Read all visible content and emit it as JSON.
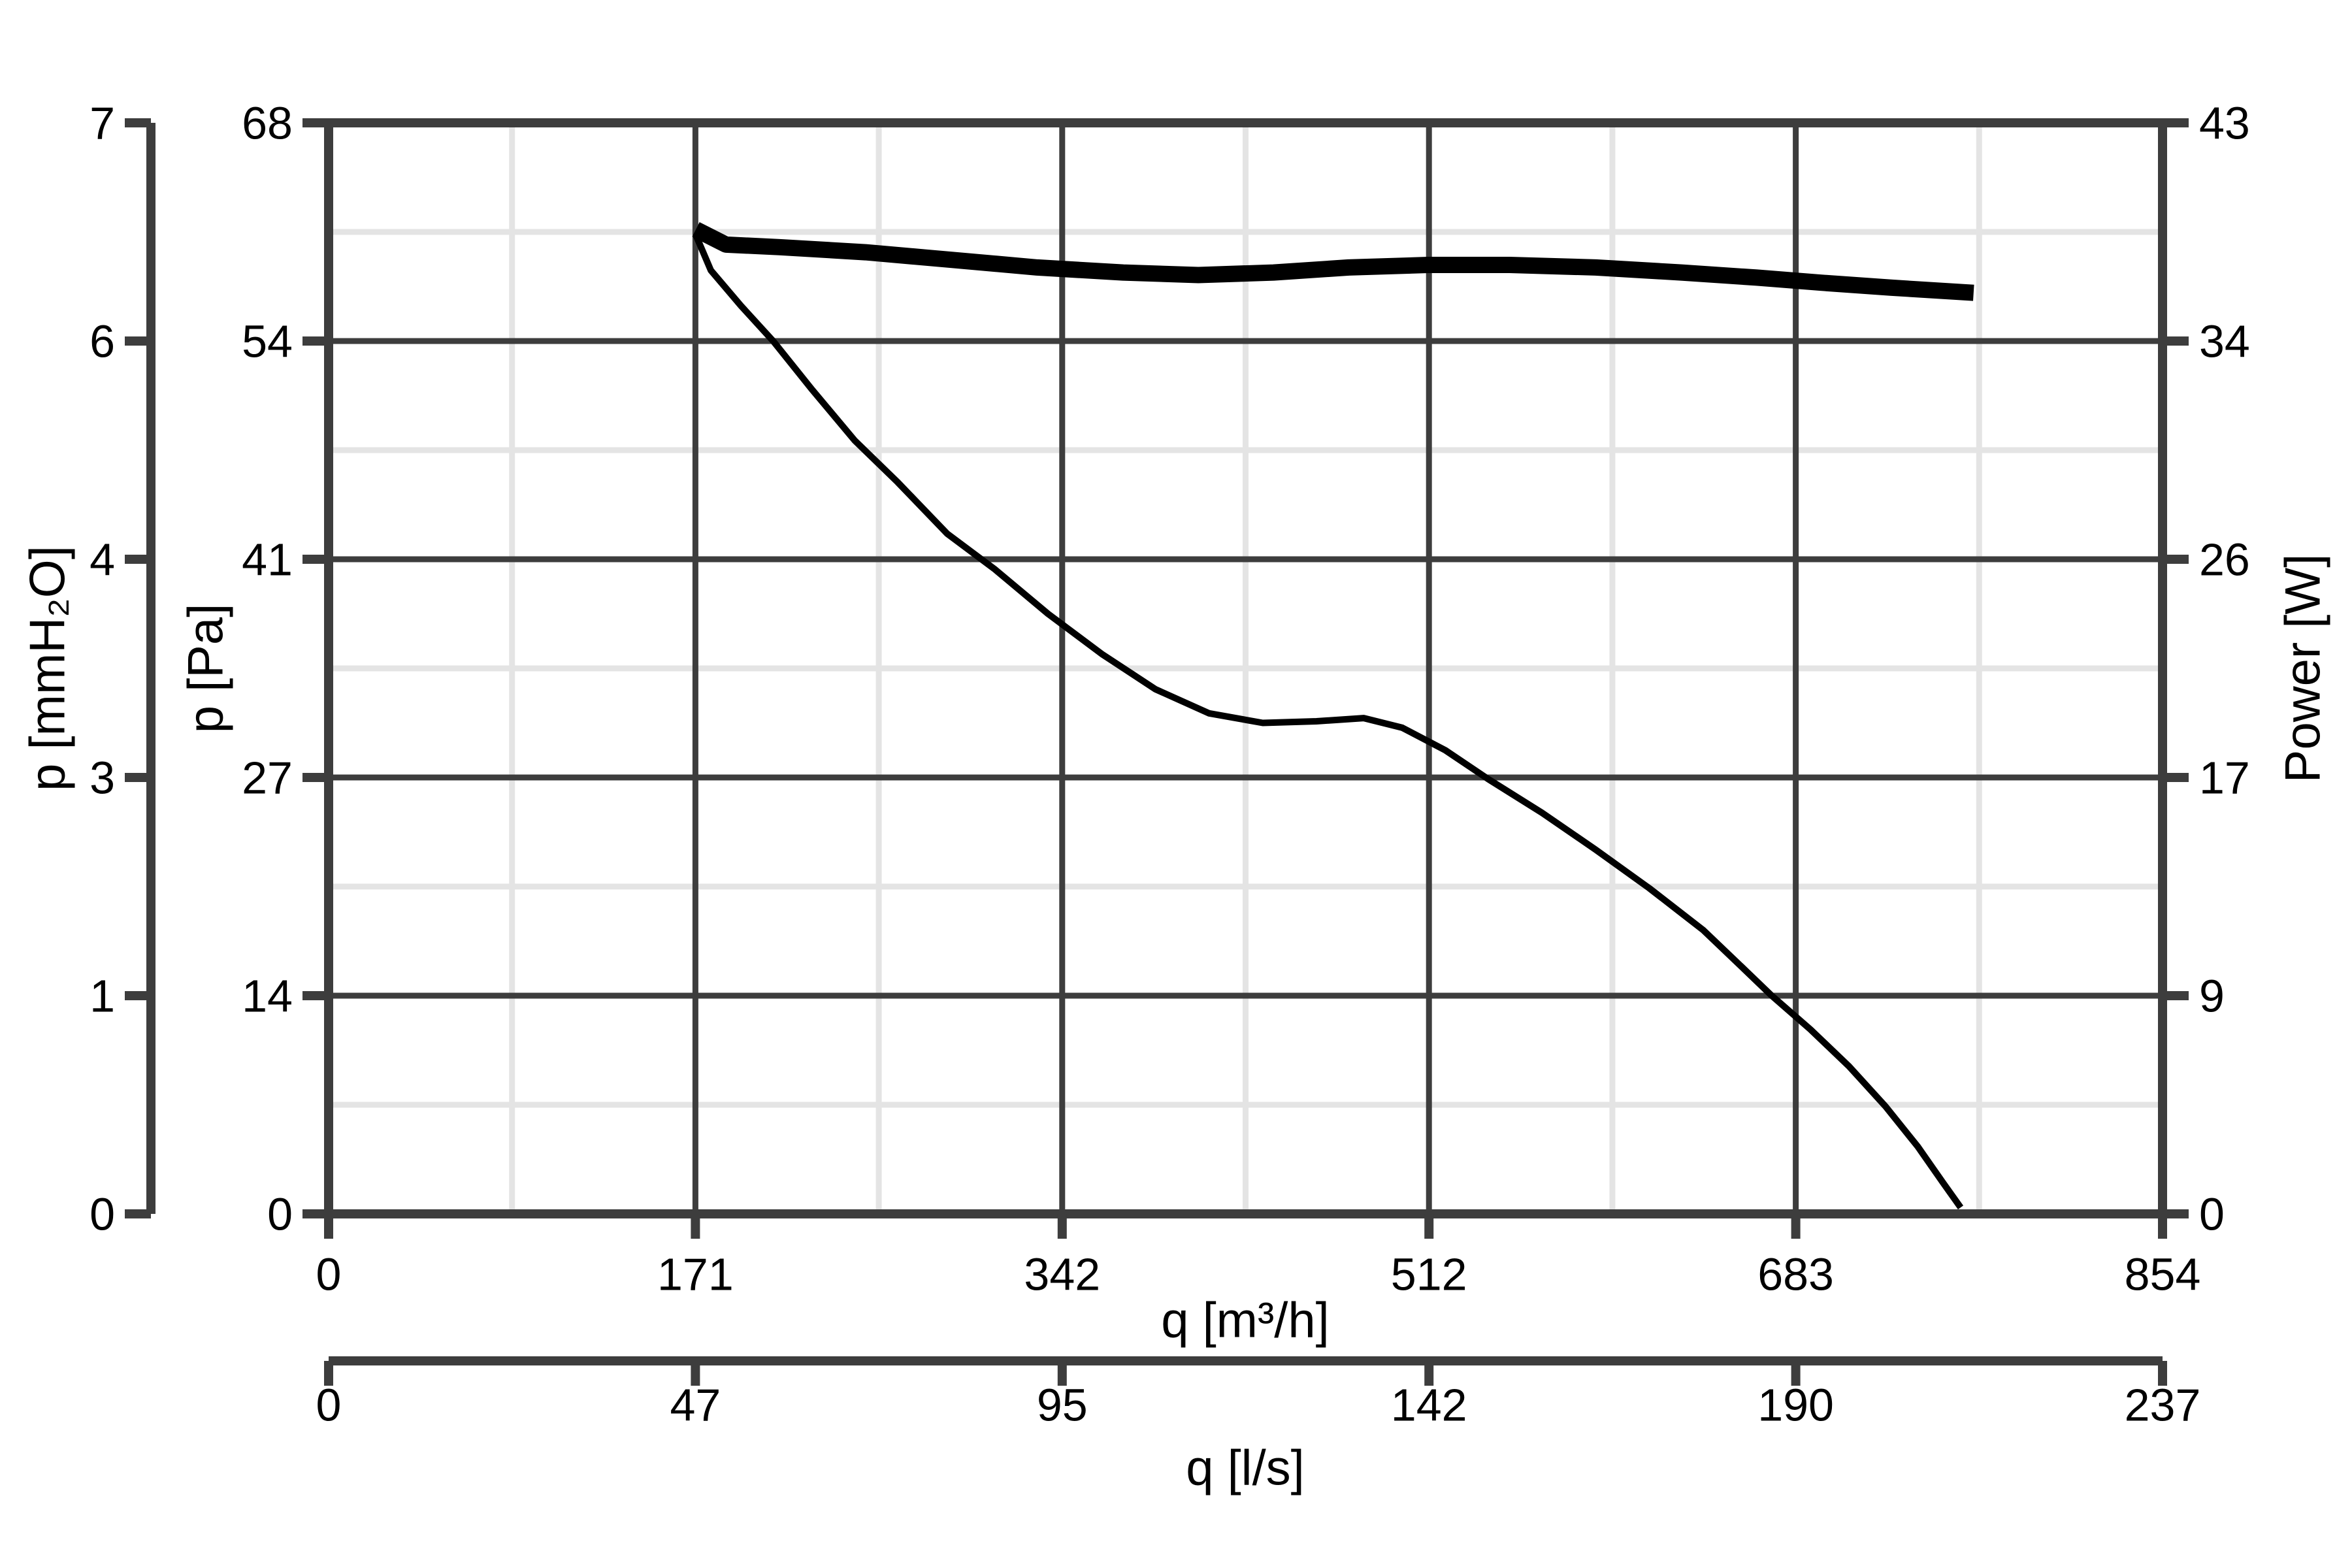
{
  "chart_data": {
    "type": "line",
    "title": "",
    "description": "Fan performance diagram: static pressure curve and power curve versus air flow rate",
    "legend": "none",
    "grid": {
      "major_divisions_x": 5,
      "major_divisions_y": 5,
      "minor_per_major": 2,
      "major_grid_on": true,
      "minor_grid_on": true
    },
    "axes": {
      "x_flow_m3h": {
        "label": "q [m³/h]",
        "min": 0,
        "max": 854,
        "tick_labels": [
          "0",
          "171",
          "342",
          "512",
          "683",
          "854"
        ],
        "position": "bottom-primary"
      },
      "x_flow_ls": {
        "label": "q [l/s]",
        "min": 0,
        "max": 237,
        "tick_labels": [
          "0",
          "47",
          "95",
          "142",
          "190",
          "237"
        ],
        "position": "bottom-secondary"
      },
      "y_pressure_pa": {
        "label": "p [Pa]",
        "min": 0,
        "max": 68,
        "tick_labels": [
          "0",
          "14",
          "27",
          "41",
          "54",
          "68"
        ],
        "position": "left-inner"
      },
      "y_pressure_mmh2o": {
        "label": "p [mmH₂O]",
        "min": 0,
        "max": 7,
        "tick_labels": [
          "0",
          "1",
          "3",
          "4",
          "6",
          "7"
        ],
        "position": "left-outer"
      },
      "y_power_w": {
        "label": "Power [W]",
        "min": 0,
        "max": 43,
        "tick_labels": [
          "0",
          "9",
          "17",
          "26",
          "34",
          "43"
        ],
        "position": "right"
      }
    },
    "series": [
      {
        "name": "pressure_curve",
        "y_axis": "y_pressure_pa",
        "stroke_width_px": 10,
        "points": [
          [
            171,
            61.0
          ],
          [
            178,
            58.8
          ],
          [
            192,
            56.6
          ],
          [
            207,
            54.4
          ],
          [
            225,
            51.4
          ],
          [
            245,
            48.2
          ],
          [
            265,
            45.6
          ],
          [
            288,
            42.4
          ],
          [
            310,
            40.2
          ],
          [
            335,
            37.4
          ],
          [
            360,
            34.9
          ],
          [
            385,
            32.7
          ],
          [
            410,
            31.2
          ],
          [
            435,
            30.6
          ],
          [
            460,
            30.7
          ],
          [
            482,
            30.9
          ],
          [
            500,
            30.3
          ],
          [
            520,
            28.9
          ],
          [
            540,
            27.1
          ],
          [
            565,
            25.0
          ],
          [
            590,
            22.7
          ],
          [
            615,
            20.3
          ],
          [
            640,
            17.7
          ],
          [
            658,
            15.4
          ],
          [
            672,
            13.6
          ],
          [
            690,
            11.5
          ],
          [
            708,
            9.2
          ],
          [
            725,
            6.7
          ],
          [
            740,
            4.2
          ],
          [
            752,
            1.9
          ],
          [
            760,
            0.4
          ]
        ]
      },
      {
        "name": "power_curve",
        "y_axis": "y_power_w",
        "stroke_width_px": 25,
        "points": [
          [
            171,
            38.8
          ],
          [
            185,
            38.2
          ],
          [
            210,
            38.1
          ],
          [
            250,
            37.9
          ],
          [
            290,
            37.6
          ],
          [
            330,
            37.3
          ],
          [
            370,
            37.1
          ],
          [
            405,
            37.0
          ],
          [
            440,
            37.1
          ],
          [
            475,
            37.3
          ],
          [
            512,
            37.4
          ],
          [
            550,
            37.4
          ],
          [
            590,
            37.3
          ],
          [
            630,
            37.1
          ],
          [
            665,
            36.9
          ],
          [
            695,
            36.7
          ],
          [
            728,
            36.5
          ],
          [
            766,
            36.3
          ]
        ]
      }
    ]
  },
  "colors": {
    "background": "#ffffff",
    "axis": "#3d3d3d",
    "major_grid": "#3d3d3d",
    "minor_grid": "#e4e4e4",
    "curve": "#000000",
    "text": "#000000"
  }
}
